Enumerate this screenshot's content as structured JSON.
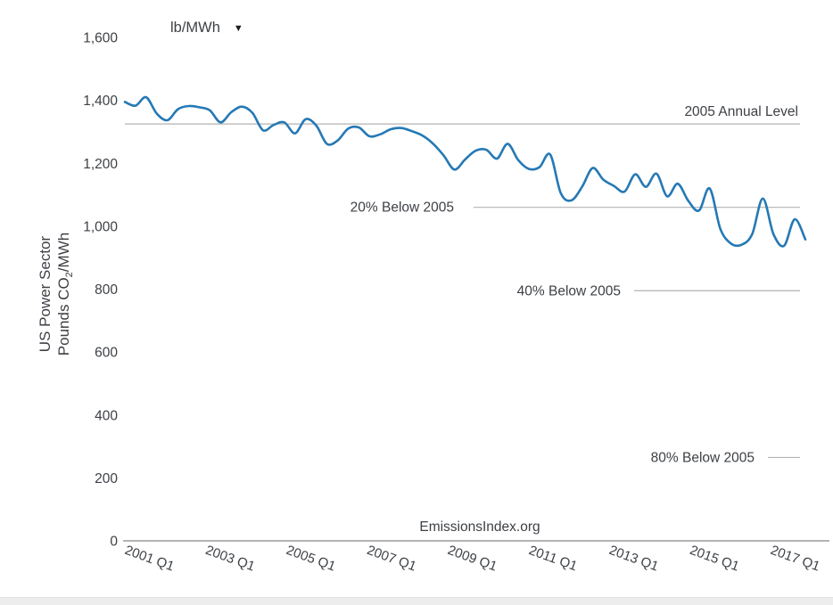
{
  "controls": {
    "unit_selector": {
      "value": "lb/MWh",
      "icon": "chevron-down-icon",
      "glyph": "▼"
    }
  },
  "chart_data": {
    "type": "line",
    "title": "",
    "watermark": "EmissionsIndex.org",
    "unit": "lb/MWh",
    "ylabel": {
      "line1": "US Power Sector",
      "line2_prefix": "Pounds CO",
      "line2_sub": "2",
      "line2_suffix": "/MWh"
    },
    "ylim": [
      0,
      1600
    ],
    "ytick_interval": 200,
    "ytick_labels": [
      "0",
      "200",
      "400",
      "600",
      "800",
      "1,000",
      "1,200",
      "1,400",
      "1,600"
    ],
    "xtick_labels": [
      "2001 Q1",
      "2003 Q1",
      "2005 Q1",
      "2007 Q1",
      "2009 Q1",
      "2011 Q1",
      "2013 Q1",
      "2015 Q1",
      "2017 Q1"
    ],
    "x_start": "2001 Q1",
    "x_end": "2017 Q1",
    "frequency": "quarterly",
    "grid": "off",
    "legend": "none",
    "series": [
      {
        "name": "US power sector CO2 emission rate (lb/MWh)",
        "values": [
          1395,
          1383,
          1410,
          1358,
          1337,
          1372,
          1382,
          1378,
          1368,
          1330,
          1362,
          1380,
          1360,
          1305,
          1322,
          1330,
          1295,
          1340,
          1320,
          1262,
          1272,
          1310,
          1314,
          1286,
          1292,
          1308,
          1312,
          1302,
          1288,
          1262,
          1224,
          1180,
          1212,
          1240,
          1243,
          1215,
          1262,
          1210,
          1182,
          1188,
          1228,
          1105,
          1082,
          1125,
          1185,
          1148,
          1128,
          1110,
          1165,
          1125,
          1167,
          1095,
          1135,
          1080,
          1050,
          1120,
          992,
          945,
          941,
          975,
          1088,
          975,
          938,
          1022,
          958
        ]
      }
    ],
    "reference_lines": [
      {
        "label": "2005 Annual Level",
        "value": 1325
      },
      {
        "label": "20% Below 2005",
        "value": 1060
      },
      {
        "label": "40% Below 2005",
        "value": 795
      },
      {
        "label": "80% Below 2005",
        "value": 265
      }
    ],
    "colors": {
      "line": "#2579b5",
      "reference_line": "#b3b3b3",
      "axis_line": "#9a9a9a",
      "text": "#3d4045"
    }
  }
}
